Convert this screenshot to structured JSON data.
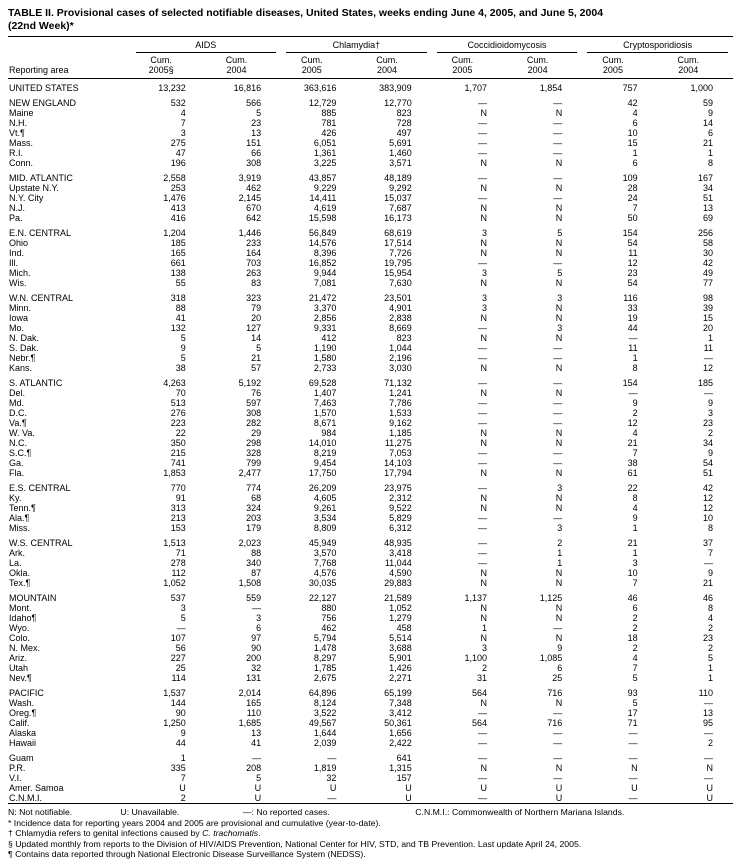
{
  "page": {
    "title_line1": "TABLE II. Provisional cases of selected notifiable diseases, United States, weeks ending June 4, 2005, and June 5, 2004",
    "title_line2": "(22nd Week)*"
  },
  "header": {
    "reporting_area": "Reporting area",
    "groups": [
      {
        "label": "AIDS",
        "cols": [
          {
            "l1": "Cum.",
            "l2": "2005§"
          },
          {
            "l1": "Cum.",
            "l2": "2004"
          }
        ]
      },
      {
        "label": "Chlamydia†",
        "cols": [
          {
            "l1": "Cum.",
            "l2": "2005"
          },
          {
            "l1": "Cum.",
            "l2": "2004"
          }
        ]
      },
      {
        "label": "Coccidioidomycosis",
        "cols": [
          {
            "l1": "Cum.",
            "l2": "2005"
          },
          {
            "l1": "Cum.",
            "l2": "2004"
          }
        ]
      },
      {
        "label": "Cryptosporidiosis",
        "cols": [
          {
            "l1": "Cum.",
            "l2": "2005"
          },
          {
            "l1": "Cum.",
            "l2": "2004"
          }
        ]
      }
    ]
  },
  "sections": [
    {
      "rows": [
        {
          "area": "UNITED STATES",
          "values": [
            "13,232",
            "16,816",
            "363,616",
            "383,909",
            "1,707",
            "1,854",
            "757",
            "1,000"
          ]
        }
      ]
    },
    {
      "rows": [
        {
          "area": "NEW ENGLAND",
          "values": [
            "532",
            "566",
            "12,729",
            "12,770",
            "—",
            "—",
            "42",
            "59"
          ]
        },
        {
          "area": "Maine",
          "values": [
            "4",
            "5",
            "885",
            "823",
            "N",
            "N",
            "4",
            "9"
          ]
        },
        {
          "area": "N.H.",
          "values": [
            "7",
            "23",
            "781",
            "728",
            "—",
            "—",
            "6",
            "14"
          ]
        },
        {
          "area": "Vt.¶",
          "values": [
            "3",
            "13",
            "426",
            "497",
            "—",
            "—",
            "10",
            "6"
          ]
        },
        {
          "area": "Mass.",
          "values": [
            "275",
            "151",
            "6,051",
            "5,691",
            "—",
            "—",
            "15",
            "21"
          ]
        },
        {
          "area": "R.I.",
          "values": [
            "47",
            "66",
            "1,361",
            "1,460",
            "—",
            "—",
            "1",
            "1"
          ]
        },
        {
          "area": "Conn.",
          "values": [
            "196",
            "308",
            "3,225",
            "3,571",
            "N",
            "N",
            "6",
            "8"
          ]
        }
      ]
    },
    {
      "rows": [
        {
          "area": "MID. ATLANTIC",
          "values": [
            "2,558",
            "3,919",
            "43,857",
            "48,189",
            "—",
            "—",
            "109",
            "167"
          ]
        },
        {
          "area": "Upstate N.Y.",
          "values": [
            "253",
            "462",
            "9,229",
            "9,292",
            "N",
            "N",
            "28",
            "34"
          ]
        },
        {
          "area": "N.Y. City",
          "values": [
            "1,476",
            "2,145",
            "14,411",
            "15,037",
            "—",
            "—",
            "24",
            "51"
          ]
        },
        {
          "area": "N.J.",
          "values": [
            "413",
            "670",
            "4,619",
            "7,687",
            "N",
            "N",
            "7",
            "13"
          ]
        },
        {
          "area": "Pa.",
          "values": [
            "416",
            "642",
            "15,598",
            "16,173",
            "N",
            "N",
            "50",
            "69"
          ]
        }
      ]
    },
    {
      "rows": [
        {
          "area": "E.N. CENTRAL",
          "values": [
            "1,204",
            "1,446",
            "56,849",
            "68,619",
            "3",
            "5",
            "154",
            "256"
          ]
        },
        {
          "area": "Ohio",
          "values": [
            "185",
            "233",
            "14,576",
            "17,514",
            "N",
            "N",
            "54",
            "58"
          ]
        },
        {
          "area": "Ind.",
          "values": [
            "165",
            "164",
            "8,396",
            "7,726",
            "N",
            "N",
            "11",
            "30"
          ]
        },
        {
          "area": "Ill.",
          "values": [
            "661",
            "703",
            "16,852",
            "19,795",
            "—",
            "—",
            "12",
            "42"
          ]
        },
        {
          "area": "Mich.",
          "values": [
            "138",
            "263",
            "9,944",
            "15,954",
            "3",
            "5",
            "23",
            "49"
          ]
        },
        {
          "area": "Wis.",
          "values": [
            "55",
            "83",
            "7,081",
            "7,630",
            "N",
            "N",
            "54",
            "77"
          ]
        }
      ]
    },
    {
      "rows": [
        {
          "area": "W.N. CENTRAL",
          "values": [
            "318",
            "323",
            "21,472",
            "23,501",
            "3",
            "3",
            "116",
            "98"
          ]
        },
        {
          "area": "Minn.",
          "values": [
            "88",
            "79",
            "3,370",
            "4,901",
            "3",
            "N",
            "33",
            "39"
          ]
        },
        {
          "area": "Iowa",
          "values": [
            "41",
            "20",
            "2,856",
            "2,838",
            "N",
            "N",
            "19",
            "15"
          ]
        },
        {
          "area": "Mo.",
          "values": [
            "132",
            "127",
            "9,331",
            "8,669",
            "—",
            "3",
            "44",
            "20"
          ]
        },
        {
          "area": "N. Dak.",
          "values": [
            "5",
            "14",
            "412",
            "823",
            "N",
            "N",
            "—",
            "1"
          ]
        },
        {
          "area": "S. Dak.",
          "values": [
            "9",
            "5",
            "1,190",
            "1,044",
            "—",
            "—",
            "11",
            "11"
          ]
        },
        {
          "area": "Nebr.¶",
          "values": [
            "5",
            "21",
            "1,580",
            "2,196",
            "—",
            "—",
            "1",
            "—"
          ]
        },
        {
          "area": "Kans.",
          "values": [
            "38",
            "57",
            "2,733",
            "3,030",
            "N",
            "N",
            "8",
            "12"
          ]
        }
      ]
    },
    {
      "rows": [
        {
          "area": "S. ATLANTIC",
          "values": [
            "4,263",
            "5,192",
            "69,528",
            "71,132",
            "—",
            "—",
            "154",
            "185"
          ]
        },
        {
          "area": "Del.",
          "values": [
            "70",
            "76",
            "1,407",
            "1,241",
            "N",
            "N",
            "—",
            "—"
          ]
        },
        {
          "area": "Md.",
          "values": [
            "513",
            "597",
            "7,463",
            "7,786",
            "—",
            "—",
            "9",
            "9"
          ]
        },
        {
          "area": "D.C.",
          "values": [
            "276",
            "308",
            "1,570",
            "1,533",
            "—",
            "—",
            "2",
            "3"
          ]
        },
        {
          "area": "Va.¶",
          "values": [
            "223",
            "282",
            "8,671",
            "9,162",
            "—",
            "—",
            "12",
            "23"
          ]
        },
        {
          "area": "W. Va.",
          "values": [
            "22",
            "29",
            "984",
            "1,185",
            "N",
            "N",
            "4",
            "2"
          ]
        },
        {
          "area": "N.C.",
          "values": [
            "350",
            "298",
            "14,010",
            "11,275",
            "N",
            "N",
            "21",
            "34"
          ]
        },
        {
          "area": "S.C.¶",
          "values": [
            "215",
            "328",
            "8,219",
            "7,053",
            "—",
            "—",
            "7",
            "9"
          ]
        },
        {
          "area": "Ga.",
          "values": [
            "741",
            "799",
            "9,454",
            "14,103",
            "—",
            "—",
            "38",
            "54"
          ]
        },
        {
          "area": "Fla.",
          "values": [
            "1,853",
            "2,477",
            "17,750",
            "17,794",
            "N",
            "N",
            "61",
            "51"
          ]
        }
      ]
    },
    {
      "rows": [
        {
          "area": "E.S. CENTRAL",
          "values": [
            "770",
            "774",
            "26,209",
            "23,975",
            "—",
            "3",
            "22",
            "42"
          ]
        },
        {
          "area": "Ky.",
          "values": [
            "91",
            "68",
            "4,605",
            "2,312",
            "N",
            "N",
            "8",
            "12"
          ]
        },
        {
          "area": "Tenn.¶",
          "values": [
            "313",
            "324",
            "9,261",
            "9,522",
            "N",
            "N",
            "4",
            "12"
          ]
        },
        {
          "area": "Ala.¶",
          "values": [
            "213",
            "203",
            "3,534",
            "5,829",
            "—",
            "—",
            "9",
            "10"
          ]
        },
        {
          "area": "Miss.",
          "values": [
            "153",
            "179",
            "8,809",
            "6,312",
            "—",
            "3",
            "1",
            "8"
          ]
        }
      ]
    },
    {
      "rows": [
        {
          "area": "W.S. CENTRAL",
          "values": [
            "1,513",
            "2,023",
            "45,949",
            "48,935",
            "—",
            "2",
            "21",
            "37"
          ]
        },
        {
          "area": "Ark.",
          "values": [
            "71",
            "88",
            "3,570",
            "3,418",
            "—",
            "1",
            "1",
            "7"
          ]
        },
        {
          "area": "La.",
          "values": [
            "278",
            "340",
            "7,768",
            "11,044",
            "—",
            "1",
            "3",
            "—"
          ]
        },
        {
          "area": "Okla.",
          "values": [
            "112",
            "87",
            "4,576",
            "4,590",
            "N",
            "N",
            "10",
            "9"
          ]
        },
        {
          "area": "Tex.¶",
          "values": [
            "1,052",
            "1,508",
            "30,035",
            "29,883",
            "N",
            "N",
            "7",
            "21"
          ]
        }
      ]
    },
    {
      "rows": [
        {
          "area": "MOUNTAIN",
          "values": [
            "537",
            "559",
            "22,127",
            "21,589",
            "1,137",
            "1,125",
            "46",
            "46"
          ]
        },
        {
          "area": "Mont.",
          "values": [
            "3",
            "—",
            "880",
            "1,052",
            "N",
            "N",
            "6",
            "8"
          ]
        },
        {
          "area": "Idaho¶",
          "values": [
            "5",
            "3",
            "756",
            "1,279",
            "N",
            "N",
            "2",
            "4"
          ]
        },
        {
          "area": "Wyo.",
          "values": [
            "—",
            "6",
            "462",
            "458",
            "1",
            "—",
            "2",
            "2"
          ]
        },
        {
          "area": "Colo.",
          "values": [
            "107",
            "97",
            "5,794",
            "5,514",
            "N",
            "N",
            "18",
            "23"
          ]
        },
        {
          "area": "N. Mex.",
          "values": [
            "56",
            "90",
            "1,478",
            "3,688",
            "3",
            "9",
            "2",
            "2"
          ]
        },
        {
          "area": "Ariz.",
          "values": [
            "227",
            "200",
            "8,297",
            "5,901",
            "1,100",
            "1,085",
            "4",
            "5"
          ]
        },
        {
          "area": "Utah",
          "values": [
            "25",
            "32",
            "1,785",
            "1,426",
            "2",
            "6",
            "7",
            "1"
          ]
        },
        {
          "area": "Nev.¶",
          "values": [
            "114",
            "131",
            "2,675",
            "2,271",
            "31",
            "25",
            "5",
            "1"
          ]
        }
      ]
    },
    {
      "rows": [
        {
          "area": "PACIFIC",
          "values": [
            "1,537",
            "2,014",
            "64,896",
            "65,199",
            "564",
            "716",
            "93",
            "110"
          ]
        },
        {
          "area": "Wash.",
          "values": [
            "144",
            "165",
            "8,124",
            "7,348",
            "N",
            "N",
            "5",
            "—"
          ]
        },
        {
          "area": "Oreg.¶",
          "values": [
            "90",
            "110",
            "3,522",
            "3,412",
            "—",
            "—",
            "17",
            "13"
          ]
        },
        {
          "area": "Calif.",
          "values": [
            "1,250",
            "1,685",
            "49,567",
            "50,361",
            "564",
            "716",
            "71",
            "95"
          ]
        },
        {
          "area": "Alaska",
          "values": [
            "9",
            "13",
            "1,644",
            "1,656",
            "—",
            "—",
            "—",
            "—"
          ]
        },
        {
          "area": "Hawaii",
          "values": [
            "44",
            "41",
            "2,039",
            "2,422",
            "—",
            "—",
            "—",
            "2"
          ]
        }
      ]
    },
    {
      "rows": [
        {
          "area": "Guam",
          "values": [
            "1",
            "—",
            "—",
            "641",
            "—",
            "—",
            "—",
            "—"
          ]
        },
        {
          "area": "P.R.",
          "values": [
            "335",
            "208",
            "1,819",
            "1,315",
            "N",
            "N",
            "N",
            "N"
          ]
        },
        {
          "area": "V.I.",
          "values": [
            "7",
            "5",
            "32",
            "157",
            "—",
            "—",
            "—",
            "—"
          ]
        },
        {
          "area": "Amer. Samoa",
          "values": [
            "U",
            "U",
            "U",
            "U",
            "U",
            "U",
            "U",
            "U"
          ]
        },
        {
          "area": "C.N.M.I.",
          "values": [
            "2",
            "U",
            "—",
            "U",
            "—",
            "U",
            "—",
            "U"
          ]
        }
      ]
    }
  ],
  "footnotes": {
    "legend": [
      "N: Not notifiable.",
      "U: Unavailable.",
      "—: No reported cases.",
      "C.N.M.I.: Commonwealth of Northern Mariana Islands."
    ],
    "star": "* Incidence data for reporting years 2004 and 2005 are provisional and cumulative (year-to-date).",
    "dagger_pre": "† Chlamydia refers to genital infections caused by ",
    "dagger_italic": "C. trachomatis",
    "dagger_post": ".",
    "section_mark": "§ Updated monthly from reports to the Division of HIV/AIDS Prevention, National Center for HIV, STD, and TB Prevention. Last update April 24, 2005.",
    "pilcrow": "¶ Contains data reported through National Electronic Disease Surveillance System (NEDSS)."
  }
}
